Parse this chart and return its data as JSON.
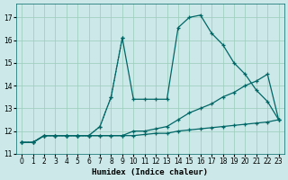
{
  "xlabel": "Humidex (Indice chaleur)",
  "bg_color": "#cce8e8",
  "grid_color": "#99ccbb",
  "line_color": "#006666",
  "xlim": [
    -0.5,
    23.5
  ],
  "ylim": [
    11.0,
    17.6
  ],
  "yticks": [
    11,
    12,
    13,
    14,
    15,
    16,
    17
  ],
  "xticks": [
    0,
    1,
    2,
    3,
    4,
    5,
    6,
    7,
    8,
    9,
    10,
    11,
    12,
    13,
    14,
    15,
    16,
    17,
    18,
    19,
    20,
    21,
    22,
    23
  ],
  "series": [
    {
      "x": [
        0,
        1,
        2,
        3,
        4,
        5,
        6,
        7,
        8,
        9
      ],
      "y": [
        11.5,
        11.5,
        11.8,
        11.8,
        11.8,
        11.8,
        11.8,
        12.2,
        13.5,
        16.1
      ],
      "style": ":",
      "lw": 0.9
    },
    {
      "x": [
        0,
        1,
        2,
        3,
        4,
        5,
        6,
        7,
        8,
        9,
        10,
        11,
        12,
        13,
        14,
        15,
        16,
        17,
        18,
        19,
        20,
        21,
        22,
        23
      ],
      "y": [
        11.5,
        11.5,
        11.8,
        11.8,
        11.8,
        11.8,
        11.8,
        12.2,
        13.5,
        16.1,
        13.4,
        13.4,
        13.4,
        13.4,
        16.55,
        17.0,
        17.1,
        16.3,
        15.8,
        15.0,
        14.5,
        13.8,
        13.3,
        12.5
      ],
      "style": "-",
      "lw": 0.9
    },
    {
      "x": [
        0,
        1,
        2,
        3,
        4,
        5,
        6,
        7,
        8,
        9,
        10,
        11,
        12,
        13,
        14,
        15,
        16,
        17,
        18,
        19,
        20,
        21,
        22,
        23
      ],
      "y": [
        11.5,
        11.5,
        11.8,
        11.8,
        11.8,
        11.8,
        11.8,
        11.8,
        11.8,
        11.8,
        12.0,
        12.0,
        12.1,
        12.2,
        12.5,
        12.8,
        13.0,
        13.2,
        13.5,
        13.7,
        14.0,
        14.2,
        14.5,
        12.5
      ],
      "style": "-",
      "lw": 0.9
    },
    {
      "x": [
        0,
        1,
        2,
        3,
        4,
        5,
        6,
        7,
        8,
        9,
        10,
        11,
        12,
        13,
        14,
        15,
        16,
        17,
        18,
        19,
        20,
        21,
        22,
        23
      ],
      "y": [
        11.5,
        11.5,
        11.8,
        11.8,
        11.8,
        11.8,
        11.8,
        11.8,
        11.8,
        11.8,
        11.8,
        11.85,
        11.9,
        11.9,
        12.0,
        12.05,
        12.1,
        12.15,
        12.2,
        12.25,
        12.3,
        12.35,
        12.4,
        12.5
      ],
      "style": "-",
      "lw": 0.9
    }
  ]
}
